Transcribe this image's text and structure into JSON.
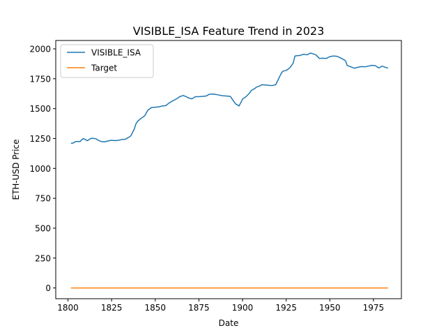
{
  "chart_data": {
    "type": "line",
    "title": "VISIBLE_ISA Feature Trend in 2023",
    "xlabel": "Date",
    "ylabel": "ETH-USD Price",
    "xlim": [
      1793,
      1991
    ],
    "ylim": [
      -90,
      2070
    ],
    "xticks": [
      1800,
      1825,
      1850,
      1875,
      1900,
      1925,
      1950,
      1975
    ],
    "yticks": [
      0,
      250,
      500,
      750,
      1000,
      1250,
      1500,
      1750,
      2000
    ],
    "grid": false,
    "legend_position": "top-left",
    "series": [
      {
        "name": "VISIBLE_ISA",
        "color": "#1f77b4",
        "x": [
          1802,
          1803,
          1804,
          1805,
          1807,
          1808,
          1809,
          1811,
          1812,
          1813,
          1814,
          1816,
          1817,
          1819,
          1821,
          1823,
          1825,
          1827,
          1829,
          1831,
          1833,
          1835,
          1836,
          1838,
          1839,
          1840,
          1842,
          1844,
          1845,
          1846,
          1848,
          1850,
          1852,
          1854,
          1856,
          1858,
          1860,
          1862,
          1864,
          1866,
          1868,
          1869,
          1871,
          1873,
          1875,
          1877,
          1879,
          1881,
          1883,
          1885,
          1887,
          1889,
          1891,
          1893,
          1895,
          1896,
          1897,
          1898,
          1899,
          1900,
          1902,
          1904,
          1905,
          1907,
          1908,
          1910,
          1911,
          1913,
          1915,
          1917,
          1919,
          1921,
          1922,
          1923,
          1925,
          1927,
          1929,
          1930,
          1931,
          1933,
          1935,
          1937,
          1939,
          1940,
          1942,
          1944,
          1946,
          1948,
          1950,
          1952,
          1954,
          1956,
          1958,
          1959,
          1960,
          1962,
          1964,
          1966,
          1968,
          1970,
          1972,
          1974,
          1976,
          1978,
          1980,
          1982,
          1983
        ],
        "values": [
          1210,
          1212,
          1222,
          1225,
          1225,
          1242,
          1250,
          1232,
          1240,
          1250,
          1252,
          1248,
          1238,
          1225,
          1222,
          1230,
          1235,
          1232,
          1235,
          1242,
          1245,
          1262,
          1272,
          1330,
          1375,
          1395,
          1420,
          1440,
          1468,
          1490,
          1510,
          1512,
          1515,
          1522,
          1525,
          1548,
          1565,
          1580,
          1600,
          1610,
          1598,
          1590,
          1582,
          1600,
          1600,
          1602,
          1605,
          1620,
          1622,
          1618,
          1612,
          1607,
          1605,
          1602,
          1560,
          1540,
          1532,
          1522,
          1550,
          1580,
          1600,
          1630,
          1652,
          1668,
          1680,
          1690,
          1700,
          1698,
          1695,
          1693,
          1700,
          1760,
          1790,
          1812,
          1820,
          1840,
          1880,
          1940,
          1942,
          1945,
          1955,
          1950,
          1965,
          1960,
          1950,
          1920,
          1922,
          1920,
          1935,
          1940,
          1938,
          1925,
          1910,
          1900,
          1860,
          1850,
          1838,
          1845,
          1852,
          1850,
          1855,
          1862,
          1860,
          1840,
          1855,
          1845,
          1840
        ]
      },
      {
        "name": "Target",
        "color": "#ff7f0e",
        "x": [
          1802,
          1983
        ],
        "values": [
          0,
          0
        ]
      }
    ]
  }
}
